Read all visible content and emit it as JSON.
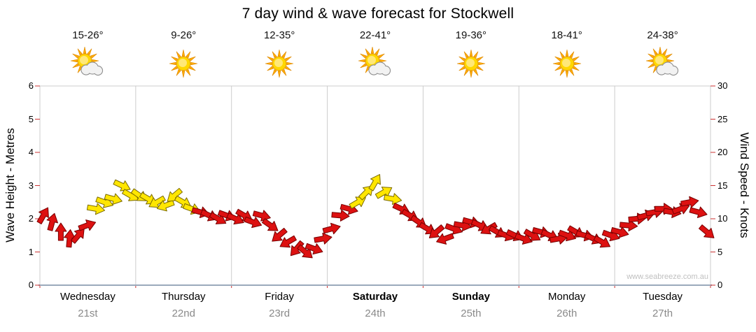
{
  "title": "7 day wind & wave forecast for Stockwell",
  "watermark": "www.seabreeze.com.au",
  "days": [
    {
      "label": "Wednesday",
      "date": "21st",
      "temp": "15-26°",
      "icon": "sun-cloud",
      "bold": false
    },
    {
      "label": "Thursday",
      "date": "22nd",
      "temp": "9-26°",
      "icon": "sun",
      "bold": false
    },
    {
      "label": "Friday",
      "date": "23rd",
      "temp": "12-35°",
      "icon": "sun",
      "bold": false
    },
    {
      "label": "Saturday",
      "date": "24th",
      "temp": "22-41°",
      "icon": "sun-cloud",
      "bold": true
    },
    {
      "label": "Sunday",
      "date": "25th",
      "temp": "19-36°",
      "icon": "sun",
      "bold": true
    },
    {
      "label": "Monday",
      "date": "26th",
      "temp": "18-41°",
      "icon": "sun",
      "bold": false
    },
    {
      "label": "Tuesday",
      "date": "27th",
      "temp": "24-38°",
      "icon": "sun-cloud",
      "bold": false
    }
  ],
  "axes": {
    "left_title": "Wave Height - Metres",
    "right_title": "Wind Speed - Knots",
    "left_ticks": [
      0,
      1,
      2,
      3,
      4,
      5,
      6
    ],
    "right_ticks": [
      0,
      5,
      10,
      15,
      20,
      25,
      30
    ],
    "left_range": [
      0,
      6
    ],
    "right_range": [
      0,
      30
    ]
  },
  "chart_data": {
    "type": "wind-arrow-band",
    "title": "7 day wind & wave forecast for Stockwell",
    "x_categories": [
      "Wednesday 21st",
      "Thursday 22nd",
      "Friday 23rd",
      "Saturday 24th",
      "Sunday 25th",
      "Monday 26th",
      "Tuesday 27th"
    ],
    "y_left": {
      "label": "Wave Height - Metres",
      "range": [
        0,
        6
      ]
    },
    "y_right": {
      "label": "Wind Speed - Knots",
      "range": [
        0,
        30
      ]
    },
    "points_per_day": 11,
    "wind_knots": [
      10.5,
      9.5,
      8,
      7,
      7.5,
      9,
      11.5,
      12.5,
      13,
      15,
      13.5,
      13.5,
      13,
      12.5,
      12,
      13.5,
      12.5,
      11.5,
      11,
      10.5,
      10,
      10.5,
      10,
      10.5,
      9.5,
      10.5,
      9,
      7.5,
      6.5,
      5.5,
      5,
      5.5,
      7,
      8.5,
      10.5,
      11.5,
      12.5,
      14,
      15.5,
      14,
      13,
      11.5,
      10.5,
      9.5,
      8.5,
      8,
      7,
      8.5,
      9,
      9.5,
      9,
      8.5,
      8,
      7.5,
      7.5,
      7,
      7.5,
      8,
      7.5,
      7,
      7.5,
      8,
      7.5,
      7,
      6.5,
      7.5,
      8,
      9,
      10,
      10.5,
      11,
      11.5,
      11,
      11.5,
      12.5,
      11,
      8
    ],
    "wind_dir_deg": [
      -60,
      -75,
      -90,
      -85,
      -50,
      -20,
      10,
      20,
      15,
      25,
      30,
      35,
      30,
      150,
      160,
      140,
      30,
      20,
      15,
      25,
      30,
      20,
      25,
      30,
      20,
      15,
      35,
      140,
      150,
      130,
      40,
      20,
      -10,
      -15,
      5,
      15,
      -30,
      -45,
      -60,
      -30,
      10,
      25,
      30,
      35,
      30,
      140,
      160,
      20,
      10,
      15,
      25,
      150,
      30,
      20,
      25,
      20,
      30,
      15,
      25,
      -10,
      20,
      30,
      15,
      25,
      30,
      20,
      15,
      5,
      -5,
      -15,
      -10,
      0,
      10,
      -20,
      -10,
      15,
      40
    ],
    "strength_color": [
      "r",
      "r",
      "r",
      "r",
      "r",
      "r",
      "y",
      "y",
      "y",
      "y",
      "y",
      "y",
      "y",
      "y",
      "y",
      "y",
      "y",
      "y",
      "r",
      "r",
      "r",
      "r",
      "r",
      "r",
      "r",
      "r",
      "r",
      "r",
      "r",
      "r",
      "r",
      "r",
      "r",
      "r",
      "r",
      "r",
      "y",
      "y",
      "y",
      "y",
      "y",
      "r",
      "r",
      "r",
      "r",
      "r",
      "r",
      "r",
      "r",
      "r",
      "r",
      "r",
      "r",
      "r",
      "r",
      "r",
      "r",
      "r",
      "r",
      "r",
      "r",
      "r",
      "r",
      "r",
      "r",
      "r",
      "r",
      "r",
      "r",
      "r",
      "r",
      "r",
      "r",
      "r",
      "r",
      "r",
      "r"
    ],
    "colors": {
      "r": "#dd1111",
      "y": "#ffe600"
    },
    "legend": "arrow height = wind speed (right axis), arrow direction = wind direction, red = lighter / yellow = stronger band",
    "grid": "vertical day boundaries"
  }
}
